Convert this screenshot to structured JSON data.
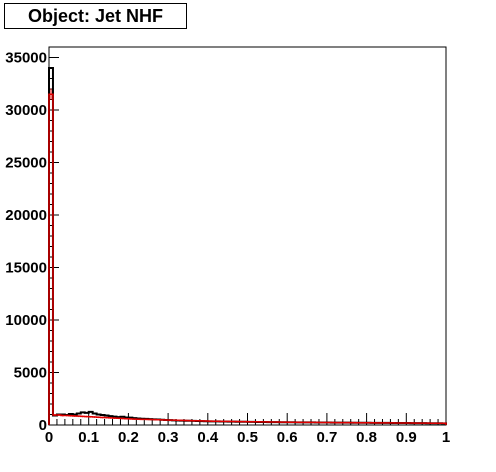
{
  "title": "Object: Jet NHF",
  "chart_data": {
    "type": "histogram",
    "title": "Object: Jet NHF",
    "xlabel": "",
    "ylabel": "",
    "xlim": [
      0,
      1
    ],
    "ylim": [
      0,
      36000
    ],
    "x_ticks": [
      "0",
      "0.1",
      "0.2",
      "0.3",
      "0.4",
      "0.5",
      "0.6",
      "0.7",
      "0.8",
      "0.9",
      "1"
    ],
    "y_ticks": [
      "0",
      "5000",
      "10000",
      "15000",
      "20000",
      "25000",
      "30000",
      "35000"
    ],
    "grid": false,
    "legend": "none",
    "bin_width": 0.01,
    "series": [
      {
        "color": "#000000",
        "style": "step",
        "values": [
          34000,
          900,
          1000,
          1000,
          950,
          1050,
          1000,
          1100,
          1200,
          1150,
          1250,
          1100,
          1000,
          950,
          900,
          850,
          800,
          750,
          780,
          720,
          700,
          650,
          620,
          600,
          580,
          560,
          540,
          520,
          500,
          480,
          460,
          440,
          430,
          420,
          410,
          400,
          390,
          380,
          370,
          360,
          350,
          345,
          340,
          335,
          330,
          325,
          320,
          315,
          310,
          305,
          300,
          295,
          290,
          285,
          280,
          275,
          270,
          268,
          265,
          262,
          260,
          258,
          255,
          252,
          250,
          248,
          245,
          242,
          240,
          238,
          235,
          232,
          230,
          228,
          225,
          222,
          220,
          218,
          215,
          212,
          210,
          208,
          205,
          202,
          200,
          198,
          195,
          192,
          190,
          188,
          185,
          182,
          180,
          178,
          175,
          172,
          170,
          168,
          165,
          160
        ]
      },
      {
        "color": "#e00000",
        "style": "step-with-errors",
        "values": [
          31500,
          950,
          950,
          900,
          900,
          880,
          860,
          840,
          820,
          800,
          780,
          760,
          740,
          720,
          700,
          680,
          660,
          640,
          620,
          600,
          580,
          560,
          550,
          540,
          530,
          520,
          510,
          500,
          490,
          480,
          470,
          460,
          450,
          440,
          430,
          420,
          410,
          400,
          390,
          380,
          370,
          360,
          355,
          350,
          345,
          340,
          335,
          330,
          325,
          320,
          315,
          310,
          305,
          300,
          295,
          290,
          285,
          280,
          275,
          270,
          265,
          260,
          258,
          255,
          252,
          250,
          248,
          245,
          242,
          240,
          238,
          235,
          232,
          230,
          228,
          225,
          222,
          220,
          218,
          215,
          212,
          210,
          208,
          205,
          202,
          200,
          198,
          195,
          192,
          190,
          188,
          185,
          182,
          180,
          178,
          175,
          172,
          170,
          168,
          165
        ]
      }
    ]
  }
}
